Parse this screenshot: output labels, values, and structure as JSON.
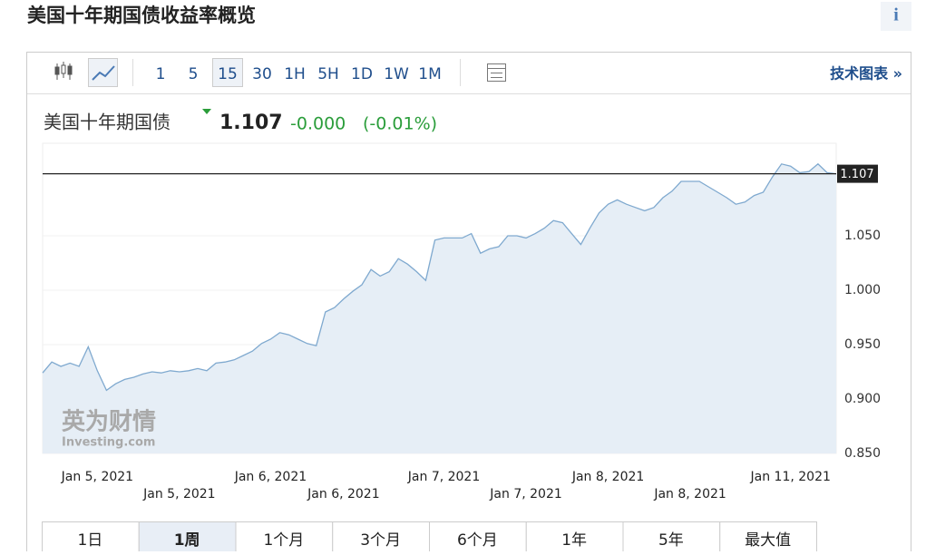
{
  "page": {
    "title": "美国十年期国债收益率概览",
    "info": "i",
    "intervals": [
      "1",
      "5",
      "15",
      "30",
      "1H",
      "5H",
      "1D",
      "1W",
      "1M"
    ],
    "selected_interval": "15",
    "tech_chart": "技术图表 »",
    "instrument": "美国十年期国债",
    "price": "1.107",
    "change": "-0.000",
    "change_pct": "(-0.01%)",
    "watermark": [
      "英为财情",
      "Investing.com"
    ],
    "ranges": [
      "1日",
      "1周",
      "1个月",
      "3个月",
      "6个月",
      "1年",
      "5年",
      "最大值"
    ],
    "selected_range": "1周"
  },
  "chart_data": {
    "type": "area",
    "categories": [
      null,
      null,
      null,
      null,
      null,
      null,
      "Jan 5, 2021",
      null,
      null,
      null,
      null,
      null,
      null,
      null,
      null,
      "Jan 5, 2021",
      null,
      null,
      null,
      null,
      null,
      null,
      null,
      null,
      null,
      "Jan 6, 2021",
      null,
      null,
      null,
      null,
      null,
      null,
      null,
      "Jan 6, 2021",
      null,
      null,
      null,
      null,
      null,
      null,
      null,
      null,
      null,
      null,
      "Jan 7, 2021",
      null,
      null,
      null,
      null,
      null,
      null,
      null,
      null,
      "Jan 7, 2021",
      null,
      null,
      null,
      null,
      null,
      null,
      null,
      null,
      "Jan 8, 2021",
      null,
      null,
      null,
      null,
      null,
      null,
      null,
      null,
      "Jan 8, 2021",
      null,
      null,
      null,
      null,
      null,
      null,
      null,
      null,
      null,
      null,
      "Jan 11, 2021",
      null,
      null,
      null,
      null,
      null
    ],
    "series": [
      {
        "color": "#7fa9cf",
        "values": [
          0.924,
          0.934,
          0.93,
          0.933,
          0.93,
          0.948,
          0.926,
          0.908,
          0.914,
          0.918,
          0.92,
          0.923,
          0.925,
          0.924,
          0.926,
          0.925,
          0.926,
          0.928,
          0.926,
          0.933,
          0.934,
          0.936,
          0.94,
          0.944,
          0.951,
          0.955,
          0.961,
          0.959,
          0.955,
          0.951,
          0.949,
          0.98,
          0.984,
          0.992,
          0.999,
          1.005,
          1.019,
          1.013,
          1.017,
          1.029,
          1.024,
          1.017,
          1.009,
          1.046,
          1.048,
          1.048,
          1.048,
          1.052,
          1.034,
          1.038,
          1.04,
          1.05,
          1.05,
          1.048,
          1.052,
          1.057,
          1.064,
          1.062,
          1.052,
          1.042,
          1.057,
          1.071,
          1.079,
          1.083,
          1.079,
          1.076,
          1.073,
          1.076,
          1.085,
          1.091,
          1.1,
          1.1,
          1.1,
          1.095,
          1.09,
          1.085,
          1.079,
          1.081,
          1.087,
          1.09,
          1.104,
          1.116,
          1.114,
          1.108,
          1.109,
          1.116,
          1.108,
          1.107
        ]
      }
    ],
    "ylim": [
      0.85,
      1.135
    ],
    "yticks": [
      {
        "value": 0.85,
        "label": "0.850"
      },
      {
        "value": 0.9,
        "label": "0.900"
      },
      {
        "value": 0.95,
        "label": "0.950"
      },
      {
        "value": 1.0,
        "label": "1.000"
      },
      {
        "value": 1.05,
        "label": "1.050"
      }
    ],
    "grid": true
  }
}
